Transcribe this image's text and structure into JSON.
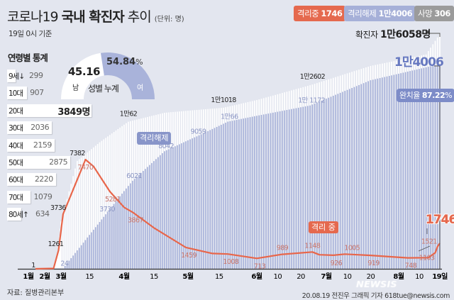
{
  "header": {
    "title_pre": "코로나19 ",
    "title_bold": "국내 확진자",
    "title_post": " 추이",
    "unit": "(단위: 명)",
    "subtitle": "19일 0시 기준"
  },
  "legend": [
    {
      "label": "격리중",
      "value": "1746",
      "color": "#e5694e"
    },
    {
      "label": "격리해제",
      "value": "1만4006",
      "color": "#a6b0d8"
    },
    {
      "label": "사망",
      "value": "306",
      "color": "#9b9b9b"
    }
  ],
  "age_stats": {
    "title": "연령별 통계",
    "unit": "명",
    "rows": [
      {
        "label": "9세↓",
        "value": 299
      },
      {
        "label": "10대",
        "value": 907
      },
      {
        "label": "20대",
        "value": 3849
      },
      {
        "label": "30대",
        "value": 2036
      },
      {
        "label": "40대",
        "value": 2159
      },
      {
        "label": "50대",
        "value": 2875
      },
      {
        "label": "60대",
        "value": 2220
      },
      {
        "label": "70대",
        "value": 1079
      },
      {
        "label": "80세↑",
        "value": 634
      }
    ]
  },
  "gender": {
    "title": "성별 누계",
    "male_label": "남",
    "male_pct": "45.16",
    "female_label": "여",
    "female_pct": "54.84",
    "pct_sign": "%",
    "male_color": "#ffffff",
    "female_color": "#a9b3da"
  },
  "chart_data": {
    "type": "bar+line",
    "x_ticks": [
      {
        "date": "2020-01-31",
        "label": "1월",
        "major": true
      },
      {
        "date": "2020-02-12",
        "label": "2월",
        "major": true
      },
      {
        "date": "2020-03-01",
        "label": "3월",
        "major": true
      },
      {
        "date": "2020-03-15",
        "label": "15",
        "major": false
      },
      {
        "date": "2020-04-01",
        "label": "4월",
        "major": true
      },
      {
        "date": "2020-04-15",
        "label": "15",
        "major": false
      },
      {
        "date": "2020-05-01",
        "label": "5월",
        "major": true
      },
      {
        "date": "2020-05-15",
        "label": "15",
        "major": false
      },
      {
        "date": "2020-06-01",
        "label": "6월",
        "major": true
      },
      {
        "date": "2020-06-10",
        "label": "10",
        "major": false
      },
      {
        "date": "2020-06-20",
        "label": "20",
        "major": false
      },
      {
        "date": "2020-07-01",
        "label": "7월",
        "major": true
      },
      {
        "date": "2020-07-10",
        "label": "10",
        "major": false
      },
      {
        "date": "2020-07-20",
        "label": "20",
        "major": false
      },
      {
        "date": "2020-08-01",
        "label": "8월",
        "major": true
      },
      {
        "date": "2020-08-10",
        "label": "10",
        "major": false
      },
      {
        "date": "2020-08-19",
        "label": "19일",
        "major": true
      }
    ],
    "ylim": [
      0,
      16500
    ],
    "series": [
      {
        "name": "확진자",
        "kind": "bar",
        "color": "#ffffff",
        "points": [
          [
            "2020-01-20",
            1
          ],
          [
            "2020-02-18",
            31
          ],
          [
            "2020-02-26",
            1261
          ],
          [
            "2020-03-02",
            3736
          ],
          [
            "2020-03-09",
            7382
          ],
          [
            "2020-03-20",
            8652
          ],
          [
            "2020-04-03",
            10062
          ],
          [
            "2020-04-20",
            10674
          ],
          [
            "2020-05-17",
            11018
          ],
          [
            "2020-06-01",
            11541
          ],
          [
            "2020-06-25",
            12602
          ],
          [
            "2020-07-20",
            13879
          ],
          [
            "2020-08-13",
            14660
          ],
          [
            "2020-08-19",
            16058
          ]
        ]
      },
      {
        "name": "격리해제",
        "kind": "bar",
        "color": "#a9b3da",
        "points": [
          [
            "2020-01-20",
            0
          ],
          [
            "2020-03-02",
            24
          ],
          [
            "2020-03-23",
            3730
          ],
          [
            "2020-04-05",
            6021
          ],
          [
            "2020-04-20",
            8042
          ],
          [
            "2020-05-05",
            9059
          ],
          [
            "2020-05-19",
            10066
          ],
          [
            "2020-06-24",
            11172
          ],
          [
            "2020-07-20",
            12900
          ],
          [
            "2020-08-19",
            14006
          ]
        ]
      },
      {
        "name": "격리 중",
        "kind": "line",
        "color": "#e8664a",
        "points": [
          [
            "2020-01-20",
            1
          ],
          [
            "2020-02-18",
            25
          ],
          [
            "2020-02-26",
            1261
          ],
          [
            "2020-03-02",
            3736
          ],
          [
            "2020-03-13",
            7470
          ],
          [
            "2020-03-17",
            7000
          ],
          [
            "2020-03-25",
            5281
          ],
          [
            "2020-04-01",
            4200
          ],
          [
            "2020-04-05",
            3867
          ],
          [
            "2020-04-15",
            2800
          ],
          [
            "2020-04-30",
            1459
          ],
          [
            "2020-05-12",
            1050
          ],
          [
            "2020-05-19",
            1008
          ],
          [
            "2020-06-01",
            713
          ],
          [
            "2020-06-12",
            989
          ],
          [
            "2020-06-25",
            1148
          ],
          [
            "2020-06-28",
            960
          ],
          [
            "2020-07-04",
            926
          ],
          [
            "2020-07-09",
            1005
          ],
          [
            "2020-07-20",
            919
          ],
          [
            "2020-08-05",
            748
          ],
          [
            "2020-08-14",
            760
          ],
          [
            "2020-08-17",
            1103
          ],
          [
            "2020-08-18",
            1521
          ],
          [
            "2020-08-19",
            1746
          ]
        ]
      }
    ],
    "annotations": [
      {
        "text": "1",
        "date": "2020-01-20",
        "value": 1,
        "series": "확진자"
      },
      {
        "text": "1261",
        "date": "2020-02-26",
        "value": 1261,
        "series": "확진자"
      },
      {
        "text": "3736",
        "date": "2020-03-02",
        "value": 3736,
        "series": "확진자"
      },
      {
        "text": "7382",
        "date": "2020-03-09",
        "value": 7382,
        "series": "확진자"
      },
      {
        "text": "1만62",
        "date": "2020-04-03",
        "value": 10062,
        "series": "확진자"
      },
      {
        "text": "1만1018",
        "date": "2020-05-17",
        "value": 11018,
        "series": "확진자"
      },
      {
        "text": "1만2602",
        "date": "2020-06-25",
        "value": 12602,
        "series": "확진자"
      },
      {
        "text": "24",
        "date": "2020-03-02",
        "value": 24,
        "series": "격리해제"
      },
      {
        "text": "3730",
        "date": "2020-03-23",
        "value": 3730,
        "series": "격리해제"
      },
      {
        "text": "6021",
        "date": "2020-04-05",
        "value": 6021,
        "series": "격리해제"
      },
      {
        "text": "8042",
        "date": "2020-04-20",
        "value": 8042,
        "series": "격리해제"
      },
      {
        "text": "9059",
        "date": "2020-05-05",
        "value": 9059,
        "series": "격리해제"
      },
      {
        "text": "1만66",
        "date": "2020-05-19",
        "value": 10066,
        "series": "격리해제"
      },
      {
        "text": "1만 1172",
        "date": "2020-06-24",
        "value": 11172,
        "series": "격리해제"
      },
      {
        "text": "7470",
        "date": "2020-03-13",
        "value": 7470,
        "series": "격리 중"
      },
      {
        "text": "5281",
        "date": "2020-03-25",
        "value": 5281,
        "series": "격리 중"
      },
      {
        "text": "3867",
        "date": "2020-04-05",
        "value": 3867,
        "series": "격리 중"
      },
      {
        "text": "1459",
        "date": "2020-04-30",
        "value": 1459,
        "series": "격리 중"
      },
      {
        "text": "1008",
        "date": "2020-05-19",
        "value": 1008,
        "series": "격리 중"
      },
      {
        "text": "713",
        "date": "2020-06-01",
        "value": 713,
        "series": "격리 중"
      },
      {
        "text": "989",
        "date": "2020-06-12",
        "value": 989,
        "series": "격리 중"
      },
      {
        "text": "1148",
        "date": "2020-06-25",
        "value": 1148,
        "series": "격리 중"
      },
      {
        "text": "926",
        "date": "2020-07-04",
        "value": 926,
        "series": "격리 중"
      },
      {
        "text": "1005",
        "date": "2020-07-09",
        "value": 1005,
        "series": "격리 중"
      },
      {
        "text": "919",
        "date": "2020-07-20",
        "value": 919,
        "series": "격리 중"
      },
      {
        "text": "748",
        "date": "2020-08-05",
        "value": 748,
        "series": "격리 중"
      },
      {
        "text": "1103",
        "date": "2020-08-17",
        "value": 1103,
        "series": "격리 중"
      },
      {
        "text": "1521",
        "date": "2020-08-18",
        "value": 1521,
        "series": "격리 중"
      }
    ],
    "callouts": {
      "total_prefix": "확진자 ",
      "total": "1만6058명",
      "released": "1만4006",
      "recovery_label": "완치율 ",
      "recovery_rate": "87.22",
      "recovery_unit": "%",
      "released_tag": "격리해제",
      "isolation_tag": "격리 중",
      "isolation_now": "1746"
    }
  },
  "footer": {
    "source": "자료: 질병관리본부",
    "credit": "20.08.19 전진우 그래픽 기자 618tue@newsis.com",
    "watermark": "NEWSIS"
  }
}
